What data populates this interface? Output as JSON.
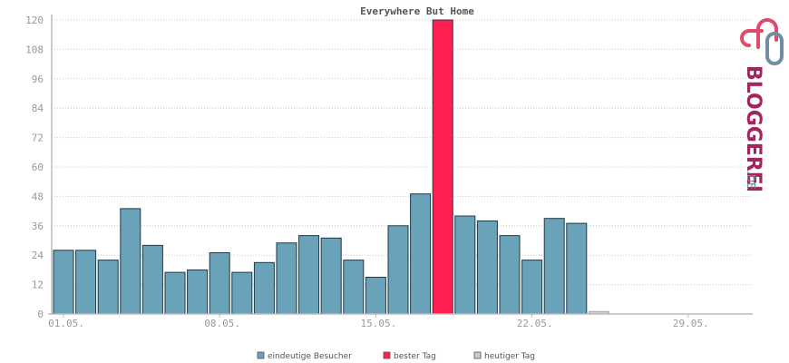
{
  "chart_data": {
    "type": "bar",
    "title": "Everywhere But Home",
    "ylim": [
      0,
      120
    ],
    "yticks": [
      0,
      12,
      24,
      36,
      48,
      60,
      72,
      84,
      96,
      108,
      120
    ],
    "x_tick_labels": [
      {
        "label": "01.05.",
        "day": 1
      },
      {
        "label": "08.05.",
        "day": 8
      },
      {
        "label": "15.05.",
        "day": 15
      },
      {
        "label": "22.05.",
        "day": 22
      },
      {
        "label": "29.05.",
        "day": 29
      }
    ],
    "day_count": 31,
    "values": [
      26,
      26,
      22,
      43,
      28,
      17,
      18,
      25,
      17,
      21,
      29,
      32,
      31,
      22,
      15,
      36,
      49,
      120,
      40,
      38,
      32,
      22,
      39,
      37,
      1,
      0,
      0,
      0,
      0,
      0,
      0
    ],
    "best_day_index": 17,
    "today_index": 24,
    "colors": {
      "visitors": "#6aa2ba",
      "best": "#ff1f50",
      "today": "#cccccc",
      "bar_stroke": "#1f3a46"
    },
    "legend": [
      {
        "label": "eindeutige Besucher",
        "color": "#6aa2ba"
      },
      {
        "label": "bester Tag",
        "color": "#ff1f50"
      },
      {
        "label": "heutiger Tag",
        "color": "#cccccc"
      }
    ],
    "grid": true,
    "legend_position": "bottom"
  },
  "logo": {
    "name": "BLOGGEREI",
    "suffix": ".DE",
    "icon": "blog-links-icon"
  }
}
